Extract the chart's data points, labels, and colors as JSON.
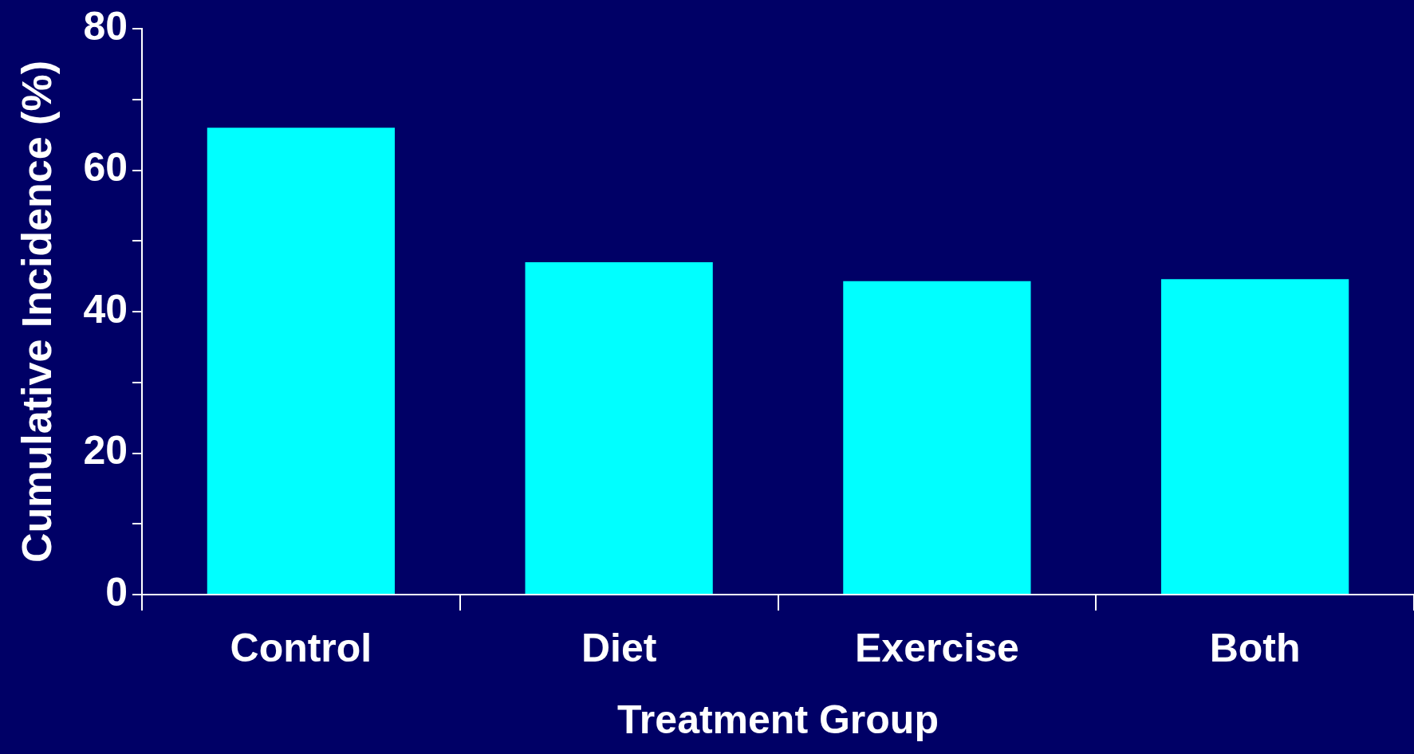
{
  "chart_data": {
    "type": "bar",
    "xlabel": "Treatment Group",
    "ylabel": "Cumulative Incidence (%)",
    "categories": [
      "Control",
      "Diet",
      "Exercise",
      "Both"
    ],
    "values": [
      66,
      47,
      44.3,
      44.6
    ],
    "color": "#00ffff",
    "ylim": [
      0,
      80
    ],
    "yticks": [
      0,
      {
        "value": 10,
        "label": null
      },
      20,
      {
        "value": 30,
        "label": null
      },
      40,
      {
        "value": 50,
        "label": null
      },
      60,
      {
        "value": 70,
        "label": null
      },
      80
    ],
    "grid": false,
    "legend": false
  }
}
